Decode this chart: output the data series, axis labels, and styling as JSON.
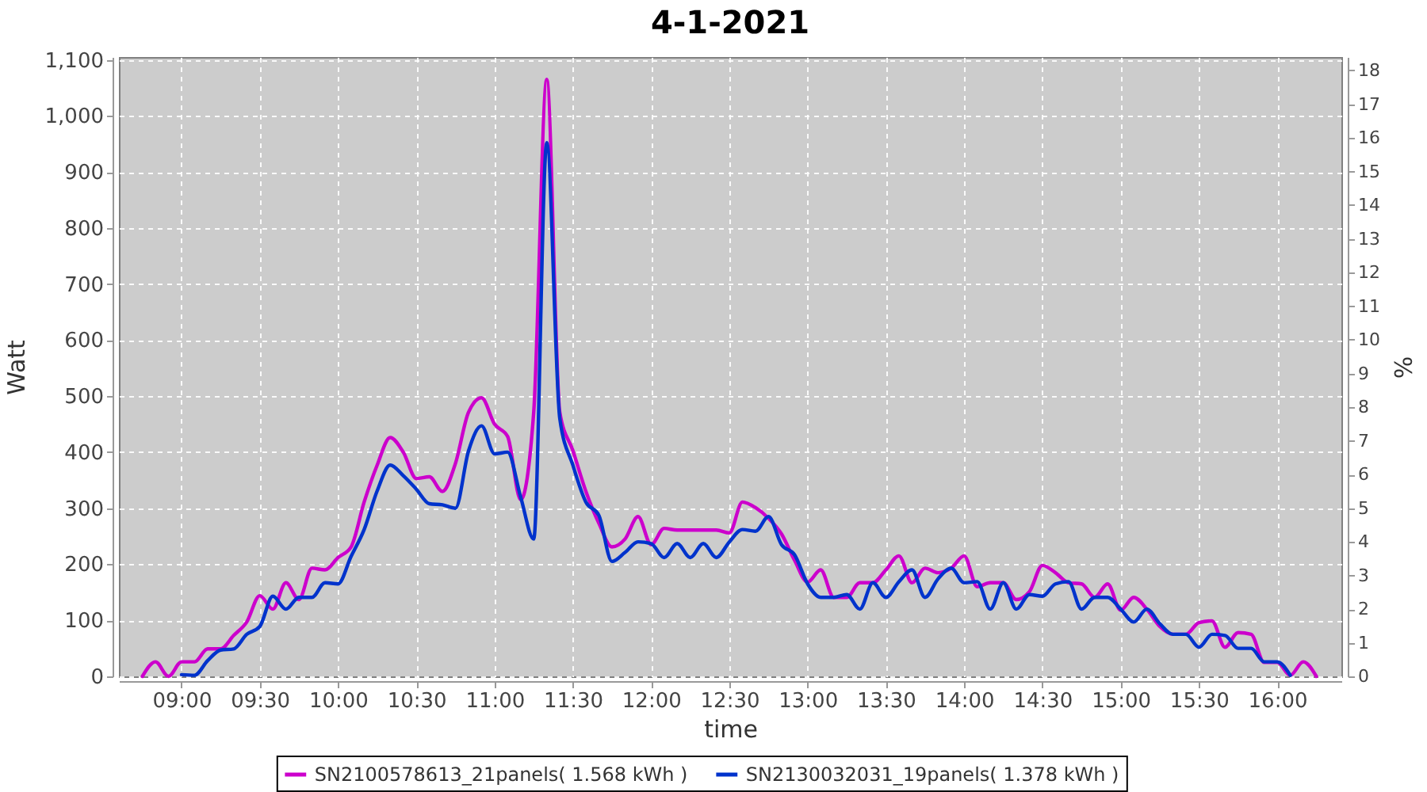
{
  "chart_data": {
    "type": "line",
    "title": "4-1-2021",
    "xlabel": "time",
    "ylabel": "Watt",
    "y2label": "%",
    "x": [
      8.75,
      8.8333,
      8.9167,
      9,
      9.0833,
      9.1667,
      9.25,
      9.3333,
      9.4167,
      9.5,
      9.5833,
      9.6667,
      9.75,
      9.8333,
      9.9167,
      10,
      10.0833,
      10.1667,
      10.25,
      10.3333,
      10.4167,
      10.5,
      10.5833,
      10.6667,
      10.75,
      10.8333,
      10.9167,
      11,
      11.0833,
      11.1667,
      11.25,
      11.3333,
      11.4167,
      11.5,
      11.5833,
      11.6667,
      11.75,
      11.8333,
      11.9167,
      12,
      12.0833,
      12.1667,
      12.25,
      12.3333,
      12.4167,
      12.5,
      12.5833,
      12.6667,
      12.75,
      12.8333,
      12.9167,
      13,
      13.0833,
      13.1667,
      13.25,
      13.3333,
      13.4167,
      13.5,
      13.5833,
      13.6667,
      13.75,
      13.8333,
      13.9167,
      14,
      14.0833,
      14.1667,
      14.25,
      14.3333,
      14.4167,
      14.5,
      14.5833,
      14.6667,
      14.75,
      14.8333,
      14.9167,
      15,
      15.0833,
      15.1667,
      15.25,
      15.3333,
      15.4167,
      15.5,
      15.5833,
      15.6667,
      15.75,
      15.8333,
      15.9167,
      16,
      16.0833,
      16.1667,
      16.25
    ],
    "series": [
      {
        "name": "SN2100578613_21panels( 1.568 kWh )",
        "color": "#cc00cc",
        "values": [
          0,
          26,
          0,
          26,
          26,
          49,
          49,
          73,
          97,
          144,
          120,
          167,
          137,
          193,
          190,
          212,
          231,
          311,
          377,
          426,
          400,
          353,
          356,
          330,
          380,
          471,
          497,
          450,
          428,
          315,
          471,
          1065,
          471,
          403,
          330,
          273,
          231,
          245,
          285,
          235,
          264,
          261,
          261,
          261,
          261,
          256,
          311,
          301,
          282,
          254,
          207,
          168,
          190,
          141,
          141,
          167,
          167,
          190,
          215,
          167,
          193,
          185,
          193,
          215,
          160,
          167,
          167,
          137,
          151,
          198,
          185,
          167,
          165,
          141,
          165,
          118,
          141,
          120,
          89,
          75,
          75,
          96,
          99,
          52,
          78,
          75,
          25,
          25,
          2,
          26,
          0
        ]
      },
      {
        "name": "SN2130032031_19panels( 1.378 kWh )",
        "color": "#0033cc",
        "values": [
          null,
          null,
          null,
          3,
          2,
          28,
          47,
          49,
          75,
          89,
          143,
          120,
          141,
          141,
          167,
          165,
          214,
          262,
          331,
          377,
          358,
          334,
          308,
          306,
          300,
          402,
          447,
          397,
          400,
          320,
          245,
          952,
          460,
          377,
          311,
          287,
          205,
          221,
          240,
          237,
          212,
          237,
          212,
          237,
          212,
          240,
          262,
          259,
          285,
          235,
          217,
          165,
          141,
          141,
          146,
          120,
          167,
          141,
          169,
          190,
          141,
          174,
          193,
          167,
          169,
          120,
          167,
          120,
          146,
          143,
          165,
          169,
          120,
          141,
          141,
          120,
          97,
          120,
          94,
          75,
          75,
          52,
          75,
          73,
          50,
          50,
          26,
          26,
          2,
          null,
          null
        ]
      }
    ],
    "xlim": [
      8.6,
      16.41
    ],
    "xticks": [
      {
        "value": 9,
        "label": "09:00"
      },
      {
        "value": 9.5,
        "label": "09:30"
      },
      {
        "value": 10,
        "label": "10:00"
      },
      {
        "value": 10.5,
        "label": "10:30"
      },
      {
        "value": 11,
        "label": "11:00"
      },
      {
        "value": 11.5,
        "label": "11:30"
      },
      {
        "value": 12,
        "label": "12:00"
      },
      {
        "value": 12.5,
        "label": "12:30"
      },
      {
        "value": 13,
        "label": "13:00"
      },
      {
        "value": 13.5,
        "label": "13:30"
      },
      {
        "value": 14,
        "label": "14:00"
      },
      {
        "value": 14.5,
        "label": "14:30"
      },
      {
        "value": 15,
        "label": "15:00"
      },
      {
        "value": 15.5,
        "label": "15:30"
      },
      {
        "value": 16,
        "label": "16:00"
      }
    ],
    "ylim": [
      0,
      1105
    ],
    "yticks": [
      0,
      100,
      200,
      300,
      400,
      500,
      600,
      700,
      800,
      900,
      {
        "value": 1000,
        "label": "1,000"
      },
      {
        "value": 1100,
        "label": "1,100"
      }
    ],
    "y2lim": [
      0,
      18.4
    ],
    "y2ticks": [
      0,
      1,
      2,
      3,
      4,
      5,
      6,
      7,
      8,
      9,
      10,
      11,
      12,
      13,
      14,
      15,
      16,
      17,
      18
    ],
    "grid": true,
    "legend": "bottom",
    "line_style": "solid"
  }
}
